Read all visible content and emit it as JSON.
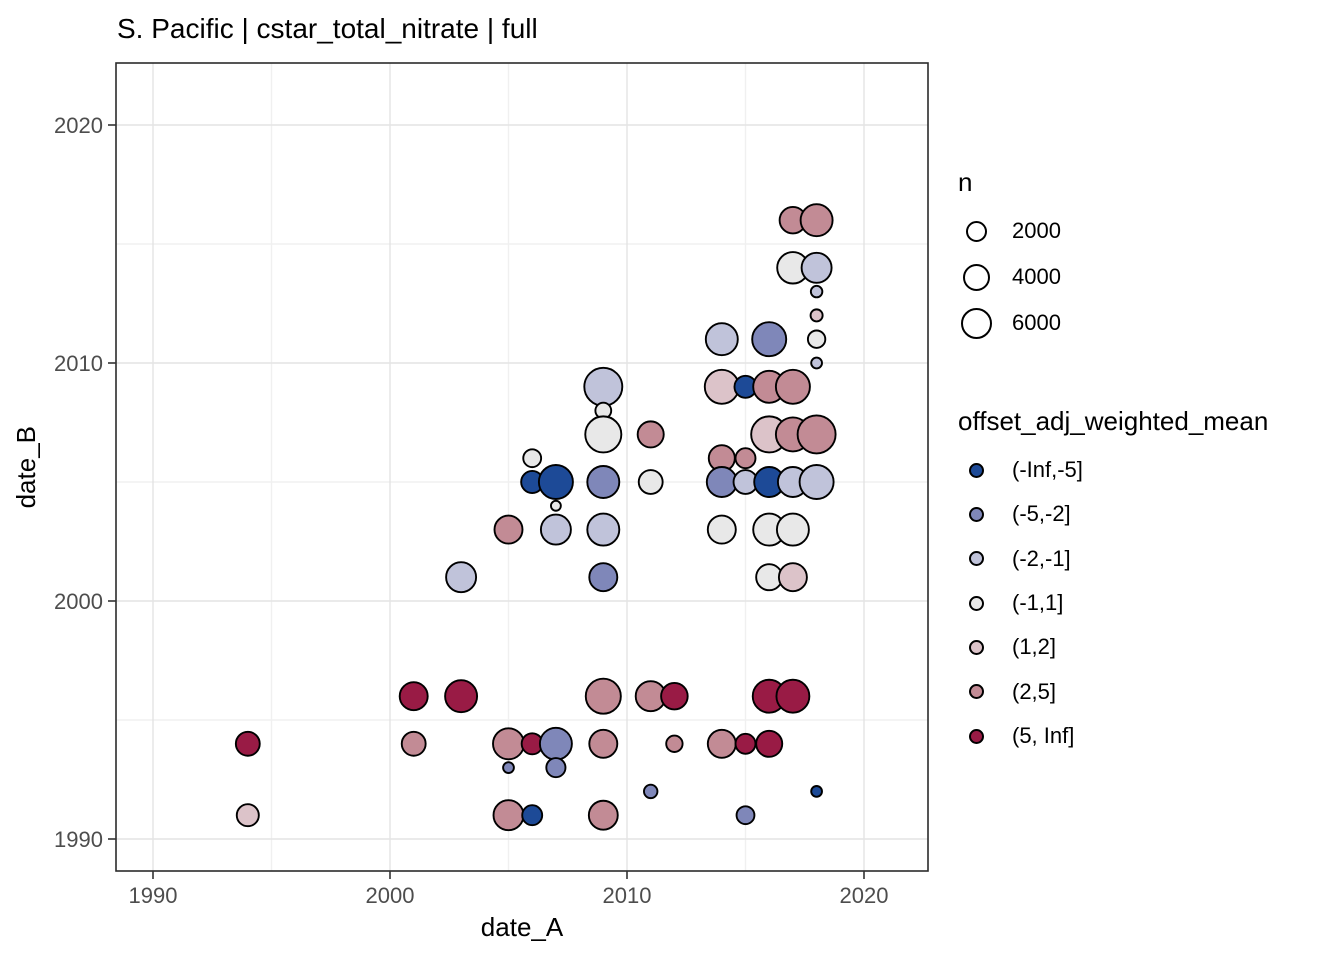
{
  "chart_data": {
    "type": "scatter",
    "title": "S. Pacific | cstar_total_nitrate | full",
    "xlabel": "date_A",
    "ylabel": "date_B",
    "xlim": [
      1988.4,
      2022.7
    ],
    "ylim": [
      1988.6,
      2022.6
    ],
    "x_ticks": [
      1990,
      2000,
      2010,
      2020
    ],
    "y_ticks": [
      1990,
      2000,
      2010,
      2020
    ],
    "x_minor_gridlines": [
      1995,
      2005,
      2015
    ],
    "y_minor_gridlines": [
      1995,
      2005,
      2015
    ],
    "grid": true,
    "legend_position": "right",
    "point_stroke_color": "#000000",
    "size_legend": {
      "title": "n",
      "values": [
        2000,
        4000,
        6000
      ]
    },
    "color_legend": {
      "title": "offset_adj_weighted_mean",
      "bins": [
        {
          "label": "(-Inf,-5]",
          "color": "#1d4a97"
        },
        {
          "label": "(-5,-2]",
          "color": "#7f87b9"
        },
        {
          "label": "(-2,-1]",
          "color": "#c0c3da"
        },
        {
          "label": "(-1,1]",
          "color": "#e8e8e8"
        },
        {
          "label": "(1,2]",
          "color": "#dcc3c9"
        },
        {
          "label": "(2,5]",
          "color": "#c28b95"
        },
        {
          "label": "(5, Inf]",
          "color": "#991b45"
        }
      ]
    },
    "points": [
      {
        "date_A": 1994,
        "date_B": 1994,
        "n": 2800,
        "bin": "(5, Inf]"
      },
      {
        "date_A": 1994,
        "date_B": 1991,
        "n": 2200,
        "bin": "(1,2]"
      },
      {
        "date_A": 2001,
        "date_B": 1996,
        "n": 4400,
        "bin": "(5, Inf]"
      },
      {
        "date_A": 2001,
        "date_B": 1994,
        "n": 2800,
        "bin": "(2,5]"
      },
      {
        "date_A": 2003,
        "date_B": 2001,
        "n": 5300,
        "bin": "(-2,-1]"
      },
      {
        "date_A": 2003,
        "date_B": 1996,
        "n": 6300,
        "bin": "(5, Inf]"
      },
      {
        "date_A": 2005,
        "date_B": 2003,
        "n": 4400,
        "bin": "(2,5]"
      },
      {
        "date_A": 2005,
        "date_B": 1994,
        "n": 5800,
        "bin": "(2,5]"
      },
      {
        "date_A": 2005,
        "date_B": 1993,
        "n": 100,
        "bin": "(-5,-2]"
      },
      {
        "date_A": 2005,
        "date_B": 1991,
        "n": 5300,
        "bin": "(2,5]"
      },
      {
        "date_A": 2006,
        "date_B": 2006,
        "n": 1100,
        "bin": "(-1,1]"
      },
      {
        "date_A": 2006,
        "date_B": 2005,
        "n": 2200,
        "bin": "(-Inf,-5]"
      },
      {
        "date_A": 2006,
        "date_B": 1994,
        "n": 1900,
        "bin": "(5, Inf]"
      },
      {
        "date_A": 2006,
        "date_B": 1991,
        "n": 1600,
        "bin": "(-Inf,-5]"
      },
      {
        "date_A": 2007,
        "date_B": 2005,
        "n": 7400,
        "bin": "(-Inf,-5]"
      },
      {
        "date_A": 2007,
        "date_B": 2004,
        "n": 50,
        "bin": "(-1,1]"
      },
      {
        "date_A": 2007,
        "date_B": 2003,
        "n": 5300,
        "bin": "(-2,-1]"
      },
      {
        "date_A": 2007,
        "date_B": 1994,
        "n": 6300,
        "bin": "(-5,-2]"
      },
      {
        "date_A": 2007,
        "date_B": 1993,
        "n": 1400,
        "bin": "(-5,-2]"
      },
      {
        "date_A": 2009,
        "date_B": 2009,
        "n": 9800,
        "bin": "(-2,-1]"
      },
      {
        "date_A": 2009,
        "date_B": 2008,
        "n": 700,
        "bin": "(-1,1]"
      },
      {
        "date_A": 2009,
        "date_B": 2007,
        "n": 8600,
        "bin": "(-1,1]"
      },
      {
        "date_A": 2009,
        "date_B": 2005,
        "n": 6300,
        "bin": "(-5,-2]"
      },
      {
        "date_A": 2009,
        "date_B": 2003,
        "n": 6300,
        "bin": "(-2,-1]"
      },
      {
        "date_A": 2009,
        "date_B": 2001,
        "n": 4400,
        "bin": "(-5,-2]"
      },
      {
        "date_A": 2009,
        "date_B": 1996,
        "n": 8000,
        "bin": "(2,5]"
      },
      {
        "date_A": 2009,
        "date_B": 1994,
        "n": 4400,
        "bin": "(2,5]"
      },
      {
        "date_A": 2009,
        "date_B": 1991,
        "n": 4800,
        "bin": "(2,5]"
      },
      {
        "date_A": 2011,
        "date_B": 2007,
        "n": 3600,
        "bin": "(2,5]"
      },
      {
        "date_A": 2011,
        "date_B": 2005,
        "n": 2800,
        "bin": "(-1,1]"
      },
      {
        "date_A": 2011,
        "date_B": 1996,
        "n": 5300,
        "bin": "(2,5]"
      },
      {
        "date_A": 2011,
        "date_B": 1992,
        "n": 350,
        "bin": "(-5,-2]"
      },
      {
        "date_A": 2012,
        "date_B": 1996,
        "n": 3800,
        "bin": "(5, Inf]"
      },
      {
        "date_A": 2012,
        "date_B": 1994,
        "n": 800,
        "bin": "(2,5]"
      },
      {
        "date_A": 2014,
        "date_B": 2011,
        "n": 6300,
        "bin": "(-2,-1]"
      },
      {
        "date_A": 2014,
        "date_B": 2009,
        "n": 7400,
        "bin": "(1,2]"
      },
      {
        "date_A": 2014,
        "date_B": 2006,
        "n": 3600,
        "bin": "(2,5]"
      },
      {
        "date_A": 2014,
        "date_B": 2005,
        "n": 5300,
        "bin": "(-5,-2]"
      },
      {
        "date_A": 2014,
        "date_B": 2003,
        "n": 4400,
        "bin": "(-1,1]"
      },
      {
        "date_A": 2014,
        "date_B": 1994,
        "n": 4400,
        "bin": "(2,5]"
      },
      {
        "date_A": 2015,
        "date_B": 2009,
        "n": 2200,
        "bin": "(-Inf,-5]"
      },
      {
        "date_A": 2015,
        "date_B": 2006,
        "n": 1600,
        "bin": "(2,5]"
      },
      {
        "date_A": 2015,
        "date_B": 2005,
        "n": 2800,
        "bin": "(-2,-1]"
      },
      {
        "date_A": 2015,
        "date_B": 1994,
        "n": 1600,
        "bin": "(5, Inf]"
      },
      {
        "date_A": 2015,
        "date_B": 1991,
        "n": 1100,
        "bin": "(-5,-2]"
      },
      {
        "date_A": 2016,
        "date_B": 2011,
        "n": 7400,
        "bin": "(-5,-2]"
      },
      {
        "date_A": 2016,
        "date_B": 2009,
        "n": 6300,
        "bin": "(2,5]"
      },
      {
        "date_A": 2016,
        "date_B": 2007,
        "n": 8600,
        "bin": "(1,2]"
      },
      {
        "date_A": 2016,
        "date_B": 2005,
        "n": 5300,
        "bin": "(-Inf,-5]"
      },
      {
        "date_A": 2016,
        "date_B": 2003,
        "n": 6300,
        "bin": "(-1,1]"
      },
      {
        "date_A": 2016,
        "date_B": 2001,
        "n": 3600,
        "bin": "(-1,1]"
      },
      {
        "date_A": 2016,
        "date_B": 1996,
        "n": 6800,
        "bin": "(5, Inf]"
      },
      {
        "date_A": 2016,
        "date_B": 1994,
        "n": 3600,
        "bin": "(5, Inf]"
      },
      {
        "date_A": 2017,
        "date_B": 2016,
        "n": 3800,
        "bin": "(2,5]"
      },
      {
        "date_A": 2017,
        "date_B": 2014,
        "n": 6000,
        "bin": "(-1,1]"
      },
      {
        "date_A": 2017,
        "date_B": 2009,
        "n": 7400,
        "bin": "(2,5]"
      },
      {
        "date_A": 2017,
        "date_B": 2007,
        "n": 7400,
        "bin": "(2,5]"
      },
      {
        "date_A": 2017,
        "date_B": 2005,
        "n": 5300,
        "bin": "(-2,-1]"
      },
      {
        "date_A": 2017,
        "date_B": 2003,
        "n": 6300,
        "bin": "(-1,1]"
      },
      {
        "date_A": 2017,
        "date_B": 2001,
        "n": 4400,
        "bin": "(1,2]"
      },
      {
        "date_A": 2017,
        "date_B": 1996,
        "n": 6800,
        "bin": "(5, Inf]"
      },
      {
        "date_A": 2018,
        "date_B": 2016,
        "n": 6300,
        "bin": "(2,5]"
      },
      {
        "date_A": 2018,
        "date_B": 2014,
        "n": 5300,
        "bin": "(-2,-1]"
      },
      {
        "date_A": 2018,
        "date_B": 2013,
        "n": 150,
        "bin": "(-2,-1]"
      },
      {
        "date_A": 2018,
        "date_B": 2012,
        "n": 200,
        "bin": "(1,2]"
      },
      {
        "date_A": 2018,
        "date_B": 2011,
        "n": 1000,
        "bin": "(-1,1]"
      },
      {
        "date_A": 2018,
        "date_B": 2010,
        "n": 100,
        "bin": "(-2,-1]"
      },
      {
        "date_A": 2018,
        "date_B": 2007,
        "n": 9800,
        "bin": "(2,5]"
      },
      {
        "date_A": 2018,
        "date_B": 2005,
        "n": 7400,
        "bin": "(-2,-1]"
      },
      {
        "date_A": 2018,
        "date_B": 1992,
        "n": 100,
        "bin": "(-Inf,-5]"
      }
    ]
  }
}
